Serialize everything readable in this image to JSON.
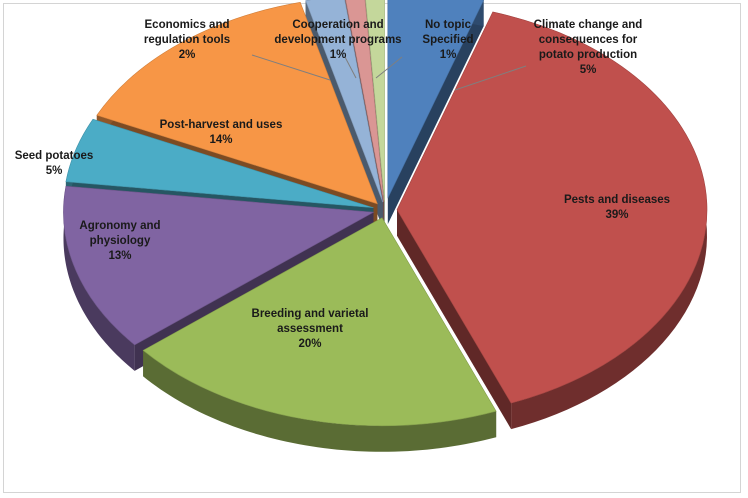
{
  "chart_data": {
    "type": "pie",
    "title": "",
    "legend": "none",
    "slices": [
      {
        "label": "Climate change and consequences for potato production",
        "label_lines": [
          "Climate change and",
          "consequences for",
          "potato production"
        ],
        "value": 5,
        "value_label": "5%",
        "color": "#4f81bd"
      },
      {
        "label": "Pests and diseases",
        "label_lines": [
          "Pests and diseases"
        ],
        "value": 39,
        "value_label": "39%",
        "color": "#c0504d"
      },
      {
        "label": "Breeding and varietal assessment",
        "label_lines": [
          "Breeding and varietal",
          "assessment"
        ],
        "value": 20,
        "value_label": "20%",
        "color": "#9bbb59"
      },
      {
        "label": "Agronomy and physiology",
        "label_lines": [
          "Agronomy and",
          "physiology"
        ],
        "value": 13,
        "value_label": "13%",
        "color": "#8064a2"
      },
      {
        "label": "Seed potatoes",
        "label_lines": [
          "Seed potatoes"
        ],
        "value": 5,
        "value_label": "5%",
        "color": "#4bacc6"
      },
      {
        "label": "Post-harvest and uses",
        "label_lines": [
          "Post-harvest and uses"
        ],
        "value": 14,
        "value_label": "14%",
        "color": "#f79646"
      },
      {
        "label": "Economics and regulation tools",
        "label_lines": [
          "Economics and",
          "regulation tools"
        ],
        "value": 2,
        "value_label": "2%",
        "color": "#95b3d7"
      },
      {
        "label": "Cooperation and development programs",
        "label_lines": [
          "Cooperation and",
          "development programs"
        ],
        "value": 1,
        "value_label": "1%",
        "color": "#da9694"
      },
      {
        "label": "No topic Specified",
        "label_lines": [
          "No topic",
          "Specified"
        ],
        "value": 1,
        "value_label": "1%",
        "color": "#c4d79b"
      }
    ]
  }
}
